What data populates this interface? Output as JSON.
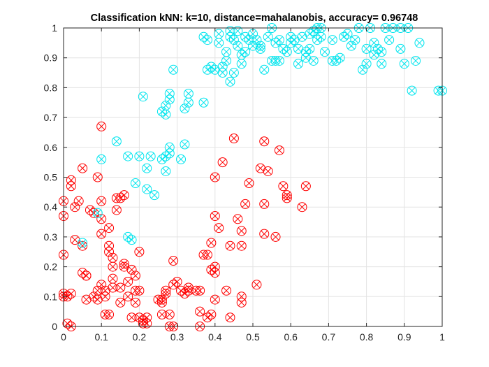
{
  "chart_data": {
    "type": "scatter",
    "title": "Classification kNN: k=10, distance=mahalanobis, accuracy= 0.96748",
    "xlabel": "",
    "ylabel": "",
    "xlim": [
      0,
      1
    ],
    "ylim": [
      0,
      1
    ],
    "grid": true,
    "x_ticks": [
      "0",
      "0.1",
      "0.2",
      "0.3",
      "0.4",
      "0.5",
      "0.6",
      "0.7",
      "0.8",
      "0.9",
      "1"
    ],
    "y_ticks": [
      "0",
      "0.1",
      "0.2",
      "0.3",
      "0.4",
      "0.5",
      "0.6",
      "0.7",
      "0.8",
      "0.9",
      "1"
    ],
    "marker_note": "circle = predicted class, x = true class",
    "colors": {
      "class_red": "#ff0000",
      "class_cyan": "#00e5ee",
      "axis": "#262626",
      "grid": "#e3e3e3"
    },
    "series": [
      {
        "class": "red",
        "color": "#ff0000",
        "marker": "circle-x",
        "points": [
          [
            0.0,
            0.42
          ],
          [
            0.0,
            0.37
          ],
          [
            0.0,
            0.24
          ],
          [
            0.0,
            0.11
          ],
          [
            0.0,
            0.1
          ],
          [
            0.01,
            0.1
          ],
          [
            0.01,
            0.01
          ],
          [
            0.02,
            0.0
          ],
          [
            0.02,
            0.11
          ],
          [
            0.02,
            0.47
          ],
          [
            0.02,
            0.49
          ],
          [
            0.03,
            0.4
          ],
          [
            0.04,
            0.42
          ],
          [
            0.03,
            0.29
          ],
          [
            0.05,
            0.27
          ],
          [
            0.05,
            0.53
          ],
          [
            0.05,
            0.18
          ],
          [
            0.06,
            0.17
          ],
          [
            0.06,
            0.17
          ],
          [
            0.06,
            0.09
          ],
          [
            0.07,
            0.39
          ],
          [
            0.08,
            0.38
          ],
          [
            0.08,
            0.1
          ],
          [
            0.09,
            0.12
          ],
          [
            0.09,
            0.09
          ],
          [
            0.09,
            0.5
          ],
          [
            0.1,
            0.67
          ],
          [
            0.1,
            0.42
          ],
          [
            0.1,
            0.36
          ],
          [
            0.1,
            0.31
          ],
          [
            0.1,
            0.14
          ],
          [
            0.11,
            0.12
          ],
          [
            0.11,
            0.1
          ],
          [
            0.11,
            0.04
          ],
          [
            0.12,
            0.04
          ],
          [
            0.12,
            0.33
          ],
          [
            0.12,
            0.27
          ],
          [
            0.12,
            0.25
          ],
          [
            0.13,
            0.23
          ],
          [
            0.13,
            0.2
          ],
          [
            0.13,
            0.16
          ],
          [
            0.13,
            0.13
          ],
          [
            0.14,
            0.39
          ],
          [
            0.14,
            0.43
          ],
          [
            0.15,
            0.43
          ],
          [
            0.15,
            0.08
          ],
          [
            0.15,
            0.13
          ],
          [
            0.16,
            0.44
          ],
          [
            0.16,
            0.21
          ],
          [
            0.16,
            0.2
          ],
          [
            0.17,
            0.1
          ],
          [
            0.17,
            0.15
          ],
          [
            0.18,
            0.19
          ],
          [
            0.18,
            0.03
          ],
          [
            0.19,
            0.17
          ],
          [
            0.19,
            0.12
          ],
          [
            0.19,
            0.08
          ],
          [
            0.2,
            0.25
          ],
          [
            0.2,
            0.12
          ],
          [
            0.2,
            0.03
          ],
          [
            0.21,
            0.01
          ],
          [
            0.21,
            0.02
          ],
          [
            0.22,
            0.01
          ],
          [
            0.22,
            0.03
          ],
          [
            0.25,
            0.09
          ],
          [
            0.26,
            0.09
          ],
          [
            0.26,
            0.04
          ],
          [
            0.26,
            0.08
          ],
          [
            0.27,
            0.11
          ],
          [
            0.27,
            0.12
          ],
          [
            0.28,
            0.0
          ],
          [
            0.28,
            0.04
          ],
          [
            0.29,
            0.0
          ],
          [
            0.29,
            0.22
          ],
          [
            0.29,
            0.14
          ],
          [
            0.3,
            0.15
          ],
          [
            0.31,
            0.12
          ],
          [
            0.32,
            0.11
          ],
          [
            0.33,
            0.13
          ],
          [
            0.33,
            0.12
          ],
          [
            0.35,
            0.12
          ],
          [
            0.36,
            0.12
          ],
          [
            0.36,
            0.0
          ],
          [
            0.36,
            0.05
          ],
          [
            0.37,
            0.24
          ],
          [
            0.38,
            0.24
          ],
          [
            0.38,
            0.03
          ],
          [
            0.39,
            0.04
          ],
          [
            0.39,
            0.28
          ],
          [
            0.39,
            0.19
          ],
          [
            0.4,
            0.2
          ],
          [
            0.4,
            0.18
          ],
          [
            0.4,
            0.09
          ],
          [
            0.4,
            0.37
          ],
          [
            0.4,
            0.5
          ],
          [
            0.41,
            0.33
          ],
          [
            0.42,
            0.55
          ],
          [
            0.43,
            0.12
          ],
          [
            0.44,
            0.27
          ],
          [
            0.44,
            0.03
          ],
          [
            0.45,
            0.63
          ],
          [
            0.46,
            0.36
          ],
          [
            0.47,
            0.32
          ],
          [
            0.47,
            0.08
          ],
          [
            0.47,
            0.1
          ],
          [
            0.47,
            0.27
          ],
          [
            0.48,
            0.41
          ],
          [
            0.49,
            0.48
          ],
          [
            0.51,
            0.14
          ],
          [
            0.52,
            0.53
          ],
          [
            0.53,
            0.41
          ],
          [
            0.53,
            0.62
          ],
          [
            0.53,
            0.31
          ],
          [
            0.54,
            0.52
          ],
          [
            0.56,
            0.3
          ],
          [
            0.57,
            0.59
          ],
          [
            0.58,
            0.47
          ],
          [
            0.59,
            0.43
          ],
          [
            0.59,
            0.44
          ],
          [
            0.63,
            0.4
          ],
          [
            0.64,
            0.47
          ]
        ]
      },
      {
        "class": "cyan",
        "color": "#00e5ee",
        "marker": "circle-x",
        "points": [
          [
            0.05,
            0.28
          ],
          [
            0.09,
            0.38
          ],
          [
            0.1,
            0.56
          ],
          [
            0.14,
            0.62
          ],
          [
            0.17,
            0.57
          ],
          [
            0.17,
            0.3
          ],
          [
            0.18,
            0.29
          ],
          [
            0.19,
            0.48
          ],
          [
            0.2,
            0.57
          ],
          [
            0.21,
            0.77
          ],
          [
            0.22,
            0.46
          ],
          [
            0.22,
            0.53
          ],
          [
            0.23,
            0.57
          ],
          [
            0.24,
            0.44
          ],
          [
            0.26,
            0.56
          ],
          [
            0.26,
            0.72
          ],
          [
            0.27,
            0.71
          ],
          [
            0.27,
            0.52
          ],
          [
            0.27,
            0.57
          ],
          [
            0.27,
            0.74
          ],
          [
            0.28,
            0.58
          ],
          [
            0.28,
            0.6
          ],
          [
            0.28,
            0.76
          ],
          [
            0.28,
            0.78
          ],
          [
            0.29,
            0.86
          ],
          [
            0.31,
            0.56
          ],
          [
            0.32,
            0.61
          ],
          [
            0.32,
            0.73
          ],
          [
            0.33,
            0.75
          ],
          [
            0.33,
            0.78
          ],
          [
            0.37,
            0.75
          ],
          [
            0.37,
            0.97
          ],
          [
            0.38,
            0.86
          ],
          [
            0.38,
            0.96
          ],
          [
            0.39,
            0.87
          ],
          [
            0.4,
            0.86
          ],
          [
            0.41,
            0.95
          ],
          [
            0.41,
            0.98
          ],
          [
            0.42,
            0.85
          ],
          [
            0.42,
            0.87
          ],
          [
            0.43,
            0.89
          ],
          [
            0.43,
            0.92
          ],
          [
            0.44,
            0.82
          ],
          [
            0.44,
            0.97
          ],
          [
            0.44,
            0.99
          ],
          [
            0.45,
            0.85
          ],
          [
            0.45,
            0.96
          ],
          [
            0.46,
            0.94
          ],
          [
            0.46,
            0.99
          ],
          [
            0.47,
            0.88
          ],
          [
            0.47,
            0.91
          ],
          [
            0.48,
            0.92
          ],
          [
            0.48,
            0.97
          ],
          [
            0.49,
            0.96
          ],
          [
            0.5,
            0.98
          ],
          [
            0.5,
            0.94
          ],
          [
            0.51,
            0.96
          ],
          [
            0.52,
            0.93
          ],
          [
            0.52,
            0.94
          ],
          [
            0.53,
            0.86
          ],
          [
            0.54,
            0.97
          ],
          [
            0.55,
            0.89
          ],
          [
            0.55,
            1.0
          ],
          [
            0.56,
            0.89
          ],
          [
            0.56,
            0.95
          ],
          [
            0.57,
            0.89
          ],
          [
            0.57,
            0.96
          ],
          [
            0.58,
            0.93
          ],
          [
            0.59,
            0.92
          ],
          [
            0.6,
            0.95
          ],
          [
            0.6,
            0.97
          ],
          [
            0.61,
            0.96
          ],
          [
            0.62,
            0.93
          ],
          [
            0.62,
            0.88
          ],
          [
            0.63,
            0.97
          ],
          [
            0.64,
            0.92
          ],
          [
            0.64,
            0.9
          ],
          [
            0.65,
            0.93
          ],
          [
            0.65,
            0.98
          ],
          [
            0.66,
            0.89
          ],
          [
            0.66,
            0.99
          ],
          [
            0.67,
            1.0
          ],
          [
            0.67,
            0.96
          ],
          [
            0.68,
            0.97
          ],
          [
            0.68,
            1.0
          ],
          [
            0.69,
            0.92
          ],
          [
            0.71,
            0.89
          ],
          [
            0.71,
            0.96
          ],
          [
            0.72,
            0.89
          ],
          [
            0.73,
            0.9
          ],
          [
            0.74,
            0.97
          ],
          [
            0.75,
            0.98
          ],
          [
            0.76,
            0.94
          ],
          [
            0.77,
            0.96
          ],
          [
            0.78,
            1.0
          ],
          [
            0.79,
            0.86
          ],
          [
            0.8,
            0.88
          ],
          [
            0.8,
            0.93
          ],
          [
            0.81,
            1.0
          ],
          [
            0.82,
            0.91
          ],
          [
            0.82,
            0.95
          ],
          [
            0.83,
            0.93
          ],
          [
            0.84,
            0.88
          ],
          [
            0.84,
            0.92
          ],
          [
            0.85,
            1.0
          ],
          [
            0.86,
            0.96
          ],
          [
            0.87,
            1.0
          ],
          [
            0.89,
            1.0
          ],
          [
            0.89,
            0.93
          ],
          [
            0.9,
            0.88
          ],
          [
            0.91,
            1.0
          ],
          [
            0.92,
            0.79
          ],
          [
            0.93,
            0.89
          ],
          [
            0.94,
            0.95
          ],
          [
            0.99,
            0.79
          ],
          [
            1.0,
            0.79
          ]
        ]
      }
    ]
  }
}
